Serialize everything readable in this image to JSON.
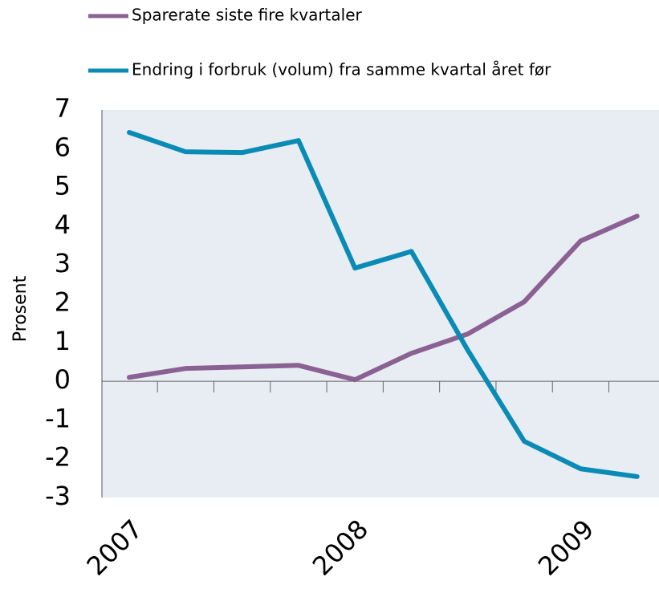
{
  "chart_data": {
    "type": "line",
    "y_label": "Prosent",
    "categories": [
      "2007",
      null,
      null,
      null,
      "2008",
      null,
      null,
      null,
      "2009",
      null
    ],
    "series": [
      {
        "name": "Sparerate siste fire kvartaler",
        "color": "#8a6192",
        "values": [
          0.1,
          0.33,
          0.37,
          0.41,
          0.04,
          0.72,
          1.22,
          2.05,
          3.62,
          4.26
        ]
      },
      {
        "name": "Endring i forbruk (volum) fra samme kvartal året før",
        "color": "#0a8bb5",
        "values": [
          6.42,
          5.92,
          5.9,
          6.21,
          2.92,
          3.35,
          0.8,
          -1.55,
          -2.26,
          -2.46
        ]
      }
    ],
    "ylim": [
      -3,
      7
    ],
    "yticks": [
      -3,
      -2,
      -1,
      0,
      1,
      2,
      3,
      4,
      5,
      6,
      7
    ]
  }
}
